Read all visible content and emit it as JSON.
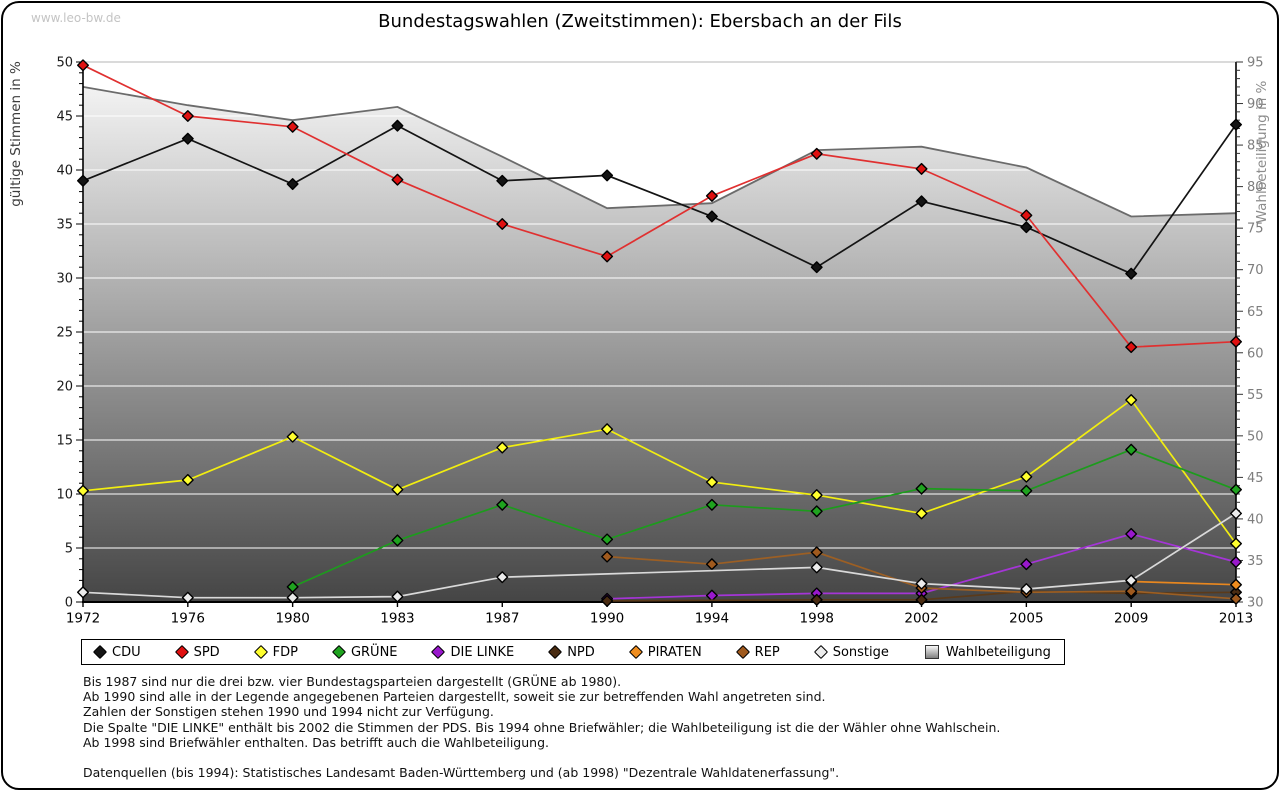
{
  "watermark": "www.leo-bw.de",
  "title": "Bundestagswahlen (Zweitstimmen): Ebersbach an der Fils",
  "chart_data": {
    "type": "line",
    "categories": [
      1972,
      1976,
      1980,
      1983,
      1987,
      1990,
      1994,
      1998,
      2002,
      2005,
      2009,
      2013
    ],
    "ylabel_left": "gültige Stimmen in %",
    "ylabel_right": "Wahlbeteiligung in %",
    "ylim_left": [
      0,
      50
    ],
    "ylim_right": [
      30,
      95
    ],
    "left_ticks": [
      0,
      5,
      10,
      15,
      20,
      25,
      30,
      35,
      40,
      45,
      50
    ],
    "right_ticks": [
      30,
      35,
      40,
      45,
      50,
      55,
      60,
      65,
      70,
      75,
      80,
      85,
      90,
      95
    ],
    "grid": true,
    "legend_position": "bottom",
    "series": [
      {
        "name": "CDU",
        "axis": "left",
        "line_color": "#141414",
        "marker_color": "#141414",
        "values": [
          39.0,
          42.9,
          38.7,
          44.1,
          39.0,
          39.5,
          35.7,
          31.0,
          37.1,
          34.7,
          30.4,
          44.2
        ]
      },
      {
        "name": "SPD",
        "axis": "left",
        "line_color": "#e03030",
        "marker_color": "#e01010",
        "values": [
          49.7,
          45.0,
          44.0,
          39.1,
          35.0,
          32.0,
          37.6,
          41.5,
          40.1,
          35.8,
          23.6,
          24.1
        ]
      },
      {
        "name": "FDP",
        "axis": "left",
        "line_color": "#f2ee10",
        "marker_color": "#ffff2e",
        "values": [
          10.3,
          11.3,
          15.3,
          10.4,
          14.3,
          16.0,
          11.1,
          9.9,
          8.2,
          11.6,
          18.7,
          5.4
        ]
      },
      {
        "name": "GRÜNE",
        "axis": "left",
        "line_color": "#1d9b1d",
        "marker_color": "#1fa31f",
        "values": [
          null,
          null,
          1.4,
          5.7,
          9.0,
          5.8,
          9.0,
          8.4,
          10.5,
          10.3,
          14.1,
          10.4
        ]
      },
      {
        "name": "DIE LINKE",
        "axis": "left",
        "line_color": "#a435d6",
        "marker_color": "#9918cc",
        "values": [
          null,
          null,
          null,
          null,
          null,
          0.3,
          0.6,
          0.8,
          0.8,
          3.5,
          6.3,
          3.7
        ]
      },
      {
        "name": "NPD",
        "axis": "left",
        "line_color": "#5a3a1a",
        "marker_color": "#4a2c12",
        "values": [
          null,
          null,
          null,
          null,
          null,
          0.1,
          null,
          0.2,
          0.2,
          1.0,
          0.8,
          0.9
        ]
      },
      {
        "name": "PIRATEN",
        "axis": "left",
        "line_color": "#e8871f",
        "marker_color": "#ef8d1f",
        "values": [
          null,
          null,
          null,
          null,
          null,
          null,
          null,
          null,
          null,
          null,
          1.9,
          1.6
        ]
      },
      {
        "name": "REP",
        "axis": "left",
        "line_color": "#9c5f24",
        "marker_color": "#a05a1e",
        "values": [
          null,
          null,
          null,
          null,
          null,
          4.2,
          3.5,
          4.6,
          1.3,
          0.9,
          1.0,
          0.3
        ]
      },
      {
        "name": "Sonstige",
        "axis": "left",
        "line_color": "#d9d9d9",
        "marker_color": "#ececec",
        "values": [
          0.9,
          0.4,
          0.4,
          0.5,
          2.3,
          null,
          null,
          3.2,
          1.7,
          1.2,
          2.0,
          8.2
        ]
      },
      {
        "name": "Wahlbeteiligung",
        "axis": "right",
        "style": "area",
        "line_color": "#6b6b6b",
        "area_gradient": [
          "#fbfbfb",
          "#454545"
        ],
        "marker": "none",
        "values": [
          92.0,
          89.8,
          88.0,
          89.6,
          83.6,
          77.4,
          78.0,
          84.4,
          84.8,
          82.3,
          76.4,
          76.8
        ]
      }
    ]
  },
  "legend": {
    "items": [
      "CDU",
      "SPD",
      "FDP",
      "GRÜNE",
      "DIE LINKE",
      "NPD",
      "PIRATEN",
      "REP",
      "Sonstige",
      "Wahlbeteiligung"
    ]
  },
  "footnotes": [
    "Bis 1987 sind nur die drei bzw. vier Bundestagsparteien dargestellt (GRÜNE ab 1980).",
    "Ab 1990 sind alle in der Legende angegebenen Parteien dargestellt, soweit sie zur betreffenden Wahl angetreten sind.",
    "Zahlen der Sonstigen stehen 1990 und 1994 nicht zur Verfügung.",
    "Die Spalte \"DIE LINKE\" enthält bis 2002 die Stimmen der PDS. Bis 1994 ohne Briefwähler; die Wahlbeteiligung ist die der Wähler ohne Wahlschein.",
    "Ab 1998 sind Briefwähler enthalten. Das betrifft auch die Wahlbeteiligung.",
    "Datenquellen (bis 1994): Statistisches Landesamt Baden-Württemberg und (ab 1998) \"Dezentrale Wahldatenerfassung\"."
  ]
}
